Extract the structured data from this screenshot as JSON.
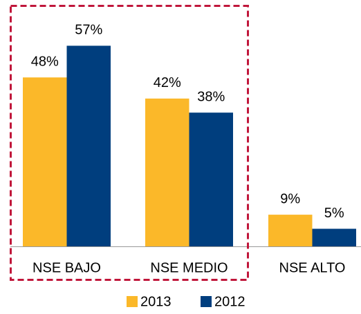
{
  "chart_data": {
    "type": "bar",
    "categories": [
      "NSE BAJO",
      "NSE MEDIO",
      "NSE ALTO"
    ],
    "series": [
      {
        "name": "2013",
        "color": "#FBB829",
        "values": [
          48,
          42,
          9
        ],
        "value_labels": [
          "48%",
          "42%",
          "9%"
        ]
      },
      {
        "name": "2012",
        "color": "#003E7E",
        "values": [
          57,
          38,
          5
        ],
        "value_labels": [
          "57%",
          "38%",
          "5%"
        ]
      }
    ]
  }
}
